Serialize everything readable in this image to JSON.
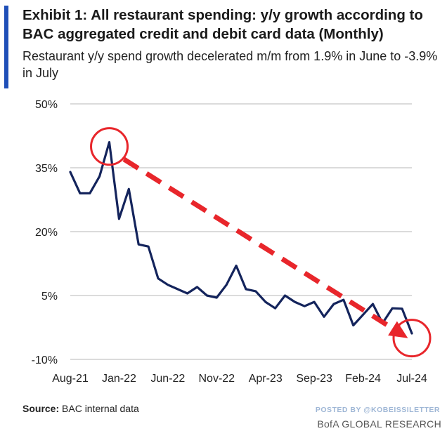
{
  "header": {
    "title": "Exhibit 1: All restaurant spending: y/y growth according to BAC aggregated credit and debit card data (Monthly)",
    "subtitle": "Restaurant y/y spend growth decelerated m/m from 1.9% in June to -3.9% in July"
  },
  "footer": {
    "source_label": "Source:",
    "source_text": "BAC internal data",
    "watermark": "POSTED BY @KOBEISSILETTER",
    "brand": "BofA GLOBAL RESEARCH"
  },
  "colors": {
    "line": "#14245c",
    "arrow": "#e8262b",
    "circle": "#e8262b",
    "grid": "#cfcfcf",
    "accent": "#1f4fb8"
  },
  "chart_data": {
    "type": "line",
    "title": "",
    "xlabel": "",
    "ylabel": "",
    "ylim": [
      -10,
      50
    ],
    "yticks": [
      50,
      35,
      20,
      5,
      -10
    ],
    "ytick_labels": [
      "50%",
      "35%",
      "20%",
      "5%",
      "-10%"
    ],
    "xtick_labels": [
      "Aug-21",
      "Jan-22",
      "Jun-22",
      "Nov-22",
      "Apr-23",
      "Sep-23",
      "Feb-24",
      "Jul-24"
    ],
    "xtick_index": [
      0,
      5,
      10,
      15,
      20,
      25,
      30,
      35
    ],
    "grid": true,
    "series": [
      {
        "name": "",
        "x": [
          "Aug-21",
          "Sep-21",
          "Oct-21",
          "Nov-21",
          "Dec-21",
          "Jan-22",
          "Feb-22",
          "Mar-22",
          "Apr-22",
          "May-22",
          "Jun-22",
          "Jul-22",
          "Aug-22",
          "Sep-22",
          "Oct-22",
          "Nov-22",
          "Dec-22",
          "Jan-23",
          "Feb-23",
          "Mar-23",
          "Apr-23",
          "May-23",
          "Jun-23",
          "Jul-23",
          "Aug-23",
          "Sep-23",
          "Oct-23",
          "Nov-23",
          "Dec-23",
          "Jan-24",
          "Feb-24",
          "Mar-24",
          "Apr-24",
          "May-24",
          "Jun-24",
          "Jul-24"
        ],
        "values": [
          34,
          29,
          29,
          33,
          41,
          23,
          30,
          17,
          16.5,
          9,
          7.5,
          6.5,
          5.5,
          7,
          5,
          4.5,
          7.5,
          12,
          6.5,
          6,
          3.5,
          2,
          5,
          3.5,
          2.5,
          3.5,
          0,
          3,
          4,
          -2,
          0.5,
          3,
          -1.5,
          2,
          1.9,
          -3.9
        ]
      }
    ],
    "annotations": [
      {
        "type": "circle",
        "at_index": 4,
        "value": 40
      },
      {
        "type": "circle",
        "at_index": 35,
        "value": -5
      },
      {
        "type": "arrow",
        "from_index": 5.5,
        "from_value": 37,
        "to_index": 34.6,
        "to_value": -5
      }
    ]
  }
}
